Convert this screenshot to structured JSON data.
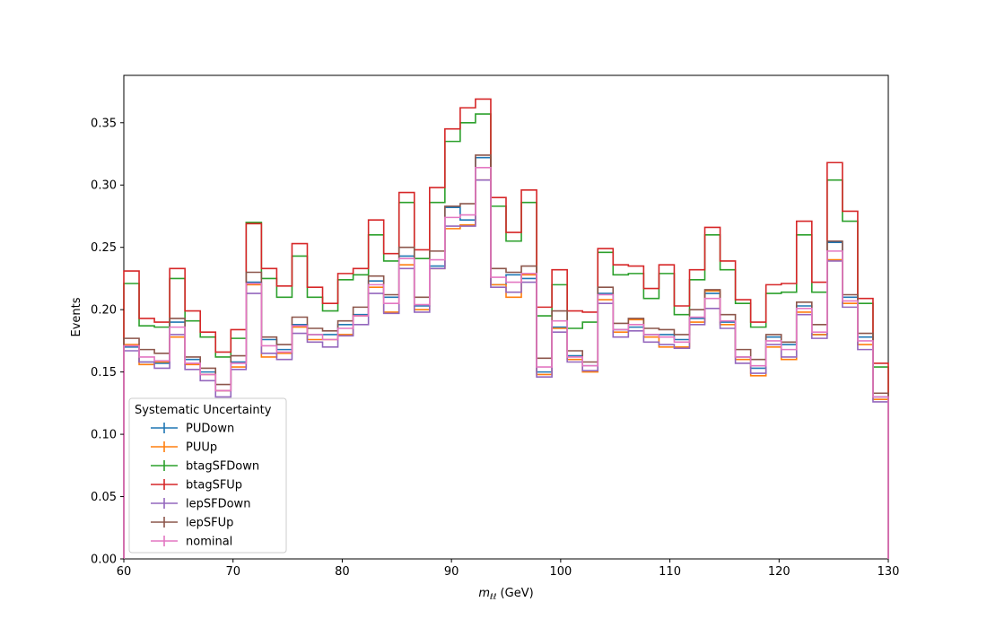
{
  "chart_data": {
    "type": "line",
    "drawstyle": "step-histogram",
    "xlabel_main": "m",
    "xlabel_sub": "ℓℓ",
    "xlabel_unit": " (GeV)",
    "ylabel": "Events",
    "xlim": [
      60,
      130
    ],
    "ylim": [
      0,
      0.388
    ],
    "xticks": [
      60,
      70,
      80,
      90,
      100,
      110,
      120,
      130
    ],
    "yticks": [
      0.0,
      0.05,
      0.1,
      0.15,
      0.2,
      0.25,
      0.3,
      0.35
    ],
    "grid": false,
    "legend": {
      "title": "Systematic Uncertainty",
      "placement": "lower-left"
    },
    "bin_edges": [
      60,
      61.4,
      62.8,
      64.2,
      65.6,
      67,
      68.4,
      69.8,
      71.2,
      72.6,
      74,
      75.4,
      76.8,
      78.2,
      79.6,
      81,
      82.4,
      83.8,
      85.2,
      86.6,
      88,
      89.4,
      90.8,
      92.2,
      93.6,
      95,
      96.4,
      97.8,
      99.2,
      100.6,
      102,
      103.4,
      104.8,
      106.2,
      107.6,
      109,
      110.4,
      111.8,
      113.2,
      114.6,
      116,
      117.4,
      118.8,
      120.2,
      121.6,
      123,
      124.4,
      125.8,
      127.2,
      128.6,
      130
    ],
    "series": [
      {
        "name": "PUDown",
        "color": "#1f77b4",
        "values": [
          0.17,
          0.158,
          0.157,
          0.19,
          0.16,
          0.15,
          0.135,
          0.158,
          0.222,
          0.176,
          0.168,
          0.188,
          0.18,
          0.18,
          0.188,
          0.196,
          0.223,
          0.21,
          0.243,
          0.203,
          0.235,
          0.282,
          0.272,
          0.322,
          0.22,
          0.228,
          0.225,
          0.15,
          0.186,
          0.163,
          0.155,
          0.213,
          0.184,
          0.186,
          0.18,
          0.18,
          0.176,
          0.193,
          0.213,
          0.19,
          0.162,
          0.153,
          0.178,
          0.172,
          0.203,
          0.18,
          0.254,
          0.21,
          0.178,
          0.13
        ]
      },
      {
        "name": "PUUp",
        "color": "#ff7f0e",
        "values": [
          0.172,
          0.156,
          0.158,
          0.178,
          0.156,
          0.148,
          0.135,
          0.154,
          0.22,
          0.162,
          0.165,
          0.186,
          0.176,
          0.176,
          0.18,
          0.195,
          0.218,
          0.198,
          0.236,
          0.2,
          0.233,
          0.265,
          0.268,
          0.304,
          0.22,
          0.21,
          0.228,
          0.148,
          0.185,
          0.16,
          0.15,
          0.208,
          0.182,
          0.192,
          0.178,
          0.17,
          0.17,
          0.19,
          0.215,
          0.188,
          0.16,
          0.147,
          0.17,
          0.16,
          0.198,
          0.18,
          0.24,
          0.205,
          0.172,
          0.128
        ]
      },
      {
        "name": "btagSFDown",
        "color": "#2ca02c",
        "values": [
          0.221,
          0.187,
          0.186,
          0.225,
          0.191,
          0.178,
          0.162,
          0.177,
          0.27,
          0.225,
          0.21,
          0.243,
          0.21,
          0.199,
          0.224,
          0.228,
          0.26,
          0.239,
          0.286,
          0.241,
          0.286,
          0.335,
          0.35,
          0.357,
          0.283,
          0.255,
          0.286,
          0.195,
          0.22,
          0.185,
          0.19,
          0.246,
          0.228,
          0.229,
          0.209,
          0.229,
          0.196,
          0.224,
          0.26,
          0.232,
          0.205,
          0.186,
          0.213,
          0.214,
          0.26,
          0.214,
          0.304,
          0.271,
          0.205,
          0.154
        ]
      },
      {
        "name": "btagSFUp",
        "color": "#d62728",
        "values": [
          0.231,
          0.193,
          0.19,
          0.233,
          0.199,
          0.182,
          0.166,
          0.184,
          0.269,
          0.233,
          0.219,
          0.253,
          0.218,
          0.205,
          0.229,
          0.233,
          0.272,
          0.245,
          0.294,
          0.248,
          0.298,
          0.345,
          0.362,
          0.369,
          0.29,
          0.262,
          0.296,
          0.202,
          0.232,
          0.199,
          0.198,
          0.249,
          0.236,
          0.235,
          0.217,
          0.236,
          0.203,
          0.232,
          0.266,
          0.239,
          0.208,
          0.19,
          0.22,
          0.221,
          0.271,
          0.222,
          0.318,
          0.279,
          0.209,
          0.157
        ]
      },
      {
        "name": "lepSFDown",
        "color": "#9467bd",
        "values": [
          0.167,
          0.158,
          0.153,
          0.18,
          0.152,
          0.143,
          0.13,
          0.152,
          0.213,
          0.165,
          0.16,
          0.181,
          0.174,
          0.17,
          0.179,
          0.188,
          0.213,
          0.197,
          0.233,
          0.198,
          0.233,
          0.267,
          0.267,
          0.304,
          0.218,
          0.214,
          0.222,
          0.146,
          0.182,
          0.158,
          0.151,
          0.205,
          0.178,
          0.183,
          0.174,
          0.172,
          0.169,
          0.188,
          0.201,
          0.185,
          0.157,
          0.149,
          0.172,
          0.162,
          0.196,
          0.177,
          0.239,
          0.202,
          0.168,
          0.126
        ]
      },
      {
        "name": "lepSFUp",
        "color": "#8c564b",
        "values": [
          0.177,
          0.168,
          0.165,
          0.193,
          0.162,
          0.153,
          0.14,
          0.163,
          0.23,
          0.178,
          0.172,
          0.194,
          0.185,
          0.183,
          0.191,
          0.202,
          0.227,
          0.212,
          0.25,
          0.21,
          0.247,
          0.283,
          0.285,
          0.324,
          0.233,
          0.23,
          0.235,
          0.161,
          0.199,
          0.167,
          0.158,
          0.218,
          0.189,
          0.193,
          0.185,
          0.184,
          0.18,
          0.2,
          0.216,
          0.196,
          0.168,
          0.16,
          0.18,
          0.174,
          0.206,
          0.188,
          0.255,
          0.212,
          0.181,
          0.133
        ]
      },
      {
        "name": "nominal",
        "color": "#e377c2",
        "values": [
          0.171,
          0.162,
          0.159,
          0.186,
          0.157,
          0.148,
          0.135,
          0.157,
          0.221,
          0.171,
          0.166,
          0.187,
          0.18,
          0.176,
          0.185,
          0.195,
          0.22,
          0.205,
          0.241,
          0.204,
          0.24,
          0.274,
          0.276,
          0.314,
          0.226,
          0.222,
          0.229,
          0.154,
          0.191,
          0.162,
          0.155,
          0.212,
          0.184,
          0.188,
          0.18,
          0.178,
          0.174,
          0.194,
          0.209,
          0.191,
          0.162,
          0.155,
          0.175,
          0.168,
          0.201,
          0.182,
          0.247,
          0.207,
          0.175,
          0.13
        ]
      }
    ]
  }
}
